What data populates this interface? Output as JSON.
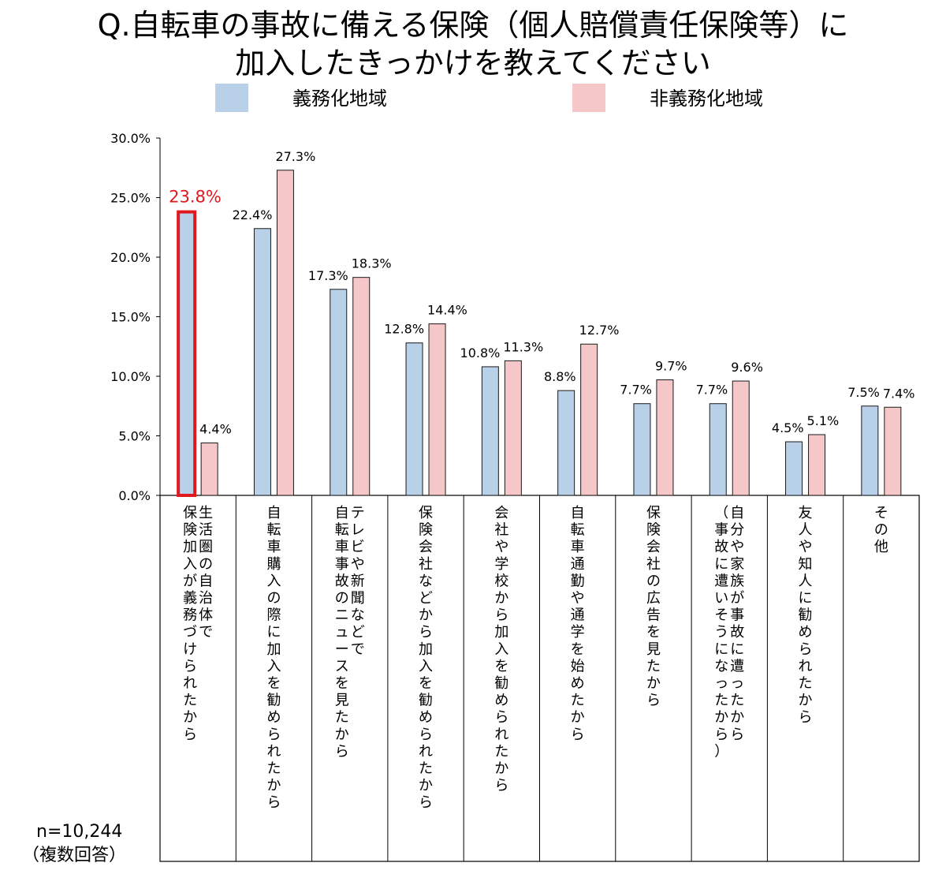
{
  "chart_data": {
    "type": "bar",
    "title_lines": [
      "Q.自転車の事故に備える保険（個人賠償責任保険等）に",
      "加入したきっかけを教えてください"
    ],
    "categories": [
      "生活圏の自治体で保険加入が義務づけられたから",
      "自転車購入の際に加入を勧められたから",
      "テレビや新聞などで自転車事故のニュースを見たから",
      "保険会社などから加入を勧められたから",
      "会社や学校から加入を勧められたから",
      "自転車通勤や通学を始めたから",
      "保険会社の広告を見たから",
      "自分や家族が事故に遭ったから（事故に遭いそうになったから）",
      "友人や知人に勧められたから",
      "その他"
    ],
    "category_lines": [
      [
        "生活圏の自治体で",
        "保険加入が義務づけられたから"
      ],
      [
        "自転車購入の際に加入を勧められたから"
      ],
      [
        "テレビや新聞などで",
        "自転車事故のニュースを見たから"
      ],
      [
        "保険会社などから加入を勧められたから"
      ],
      [
        "会社や学校から加入を勧められたから"
      ],
      [
        "自転車通勤や通学を始めたから"
      ],
      [
        "保険会社の広告を見たから"
      ],
      [
        "自分や家族が事故に遭ったから",
        "（事故に遭いそうになったから）"
      ],
      [
        "友人や知人に勧められたから"
      ],
      [
        "その他"
      ]
    ],
    "series": [
      {
        "name": "義務化地域",
        "color": "#b8d0e8",
        "values": [
          23.8,
          22.4,
          17.3,
          12.8,
          10.8,
          8.8,
          7.7,
          7.7,
          4.5,
          7.5
        ],
        "labels": [
          "23.8%",
          "22.4%",
          "17.3%",
          "12.8%",
          "10.8%",
          "8.8%",
          "7.7%",
          "7.7%",
          "4.5%",
          "7.5%"
        ]
      },
      {
        "name": "非義務化地域",
        "color": "#f5c7c8",
        "values": [
          4.4,
          27.3,
          18.3,
          14.4,
          11.3,
          12.7,
          9.7,
          9.6,
          5.1,
          7.4
        ],
        "labels": [
          "4.4%",
          "27.3%",
          "18.3%",
          "14.4%",
          "11.3%",
          "12.7%",
          "9.7%",
          "9.6%",
          "5.1%",
          "7.4%"
        ]
      }
    ],
    "ylim": [
      0,
      30
    ],
    "yticks": [
      0,
      5,
      10,
      15,
      20,
      25,
      30
    ],
    "ytick_labels": [
      "0.0%",
      "5.0%",
      "10.0%",
      "15.0%",
      "20.0%",
      "25.0%",
      "30.0%"
    ],
    "highlight": {
      "series": 0,
      "category": 0,
      "color": "#e0191f"
    },
    "legend_position": "top",
    "grid": false
  },
  "note": {
    "n": "n=10,244",
    "multiple": "（複数回答）"
  }
}
